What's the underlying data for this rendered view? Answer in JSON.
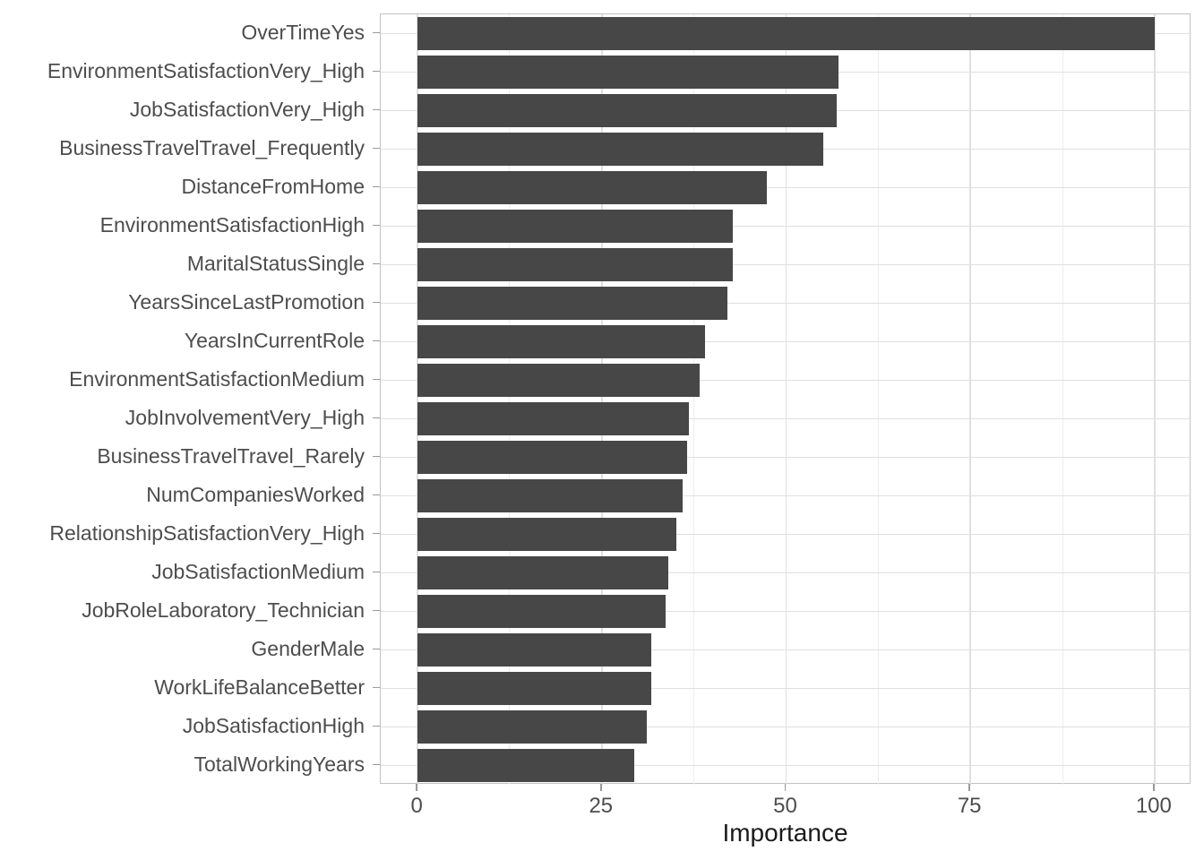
{
  "figure": {
    "background": "#ffffff"
  },
  "chart_data": {
    "type": "bar",
    "orientation": "horizontal",
    "title": "",
    "xlabel": "Importance",
    "ylabel": "",
    "categories": [
      "OverTimeYes",
      "EnvironmentSatisfactionVery_High",
      "JobSatisfactionVery_High",
      "BusinessTravelTravel_Frequently",
      "DistanceFromHome",
      "EnvironmentSatisfactionHigh",
      "MaritalStatusSingle",
      "YearsSinceLastPromotion",
      "YearsInCurrentRole",
      "EnvironmentSatisfactionMedium",
      "JobInvolvementVery_High",
      "BusinessTravelTravel_Rarely",
      "NumCompaniesWorked",
      "RelationshipSatisfactionVery_High",
      "JobSatisfactionMedium",
      "JobRoleLaboratory_Technician",
      "GenderMale",
      "WorkLifeBalanceBetter",
      "JobSatisfactionHigh",
      "TotalWorkingYears"
    ],
    "values": [
      100,
      57.1,
      56.9,
      55.0,
      47.4,
      42.8,
      42.8,
      42.0,
      39.0,
      38.3,
      36.8,
      36.6,
      36.0,
      35.1,
      34.0,
      33.7,
      31.7,
      31.7,
      31.1,
      29.4
    ],
    "x_ticks": [
      0,
      25,
      50,
      75,
      100
    ],
    "x_minor_ticks": [
      12.5,
      37.5,
      62.5,
      87.5
    ],
    "xlim": [
      0,
      100
    ],
    "expansion": 0.05,
    "grid": "vertical major+minor; horizontal major at each category",
    "legend": "none",
    "colors": {
      "bar_fill": "#474747",
      "panel_background": "#ffffff",
      "panel_border": "#c2c2c2",
      "grid_major": "#e0e0e0",
      "grid_minor": "#eeeeee",
      "tick_mark": "#999999",
      "axis_text": "#4d4d4d",
      "axis_title": "#1a1a1a"
    }
  }
}
